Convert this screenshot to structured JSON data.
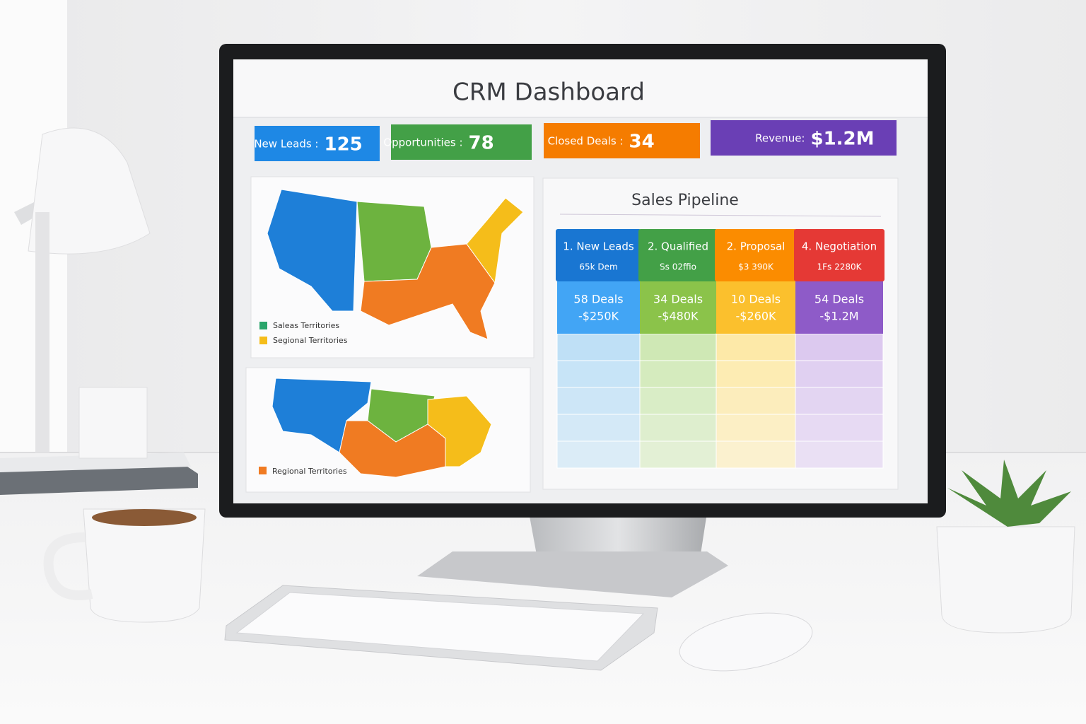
{
  "screen": {
    "title": "CRM Dashboard",
    "kpis": [
      {
        "label": "New Leads :",
        "value": "125"
      },
      {
        "label": "Opportunities :",
        "value": "78"
      },
      {
        "label": "Closed Deals :",
        "value": "34"
      },
      {
        "label": "Revenue:",
        "value": "$1.2M"
      }
    ],
    "maps": [
      {
        "legend": [
          "Saleas Territories",
          "Segional Territories"
        ]
      },
      {
        "legend": [
          "Regional Territories"
        ]
      }
    ],
    "pipeline": {
      "title": "Sales Pipeline",
      "stages": [
        {
          "name": "1. New Leads",
          "sub": "65k Dem",
          "deals": "58 Deals",
          "amount": "-$250K"
        },
        {
          "name": "2. Qualified",
          "sub": "Ss 02ffio",
          "deals": "34 Deals",
          "amount": "-$480K"
        },
        {
          "name": "2. Proposal",
          "sub": "$3 390K",
          "deals": "10 Deals",
          "amount": "-$260K"
        },
        {
          "name": "4. Negotiation",
          "sub": "1Fs 2280K",
          "deals": "54 Deals",
          "amount": "-$1.2M"
        }
      ]
    }
  }
}
